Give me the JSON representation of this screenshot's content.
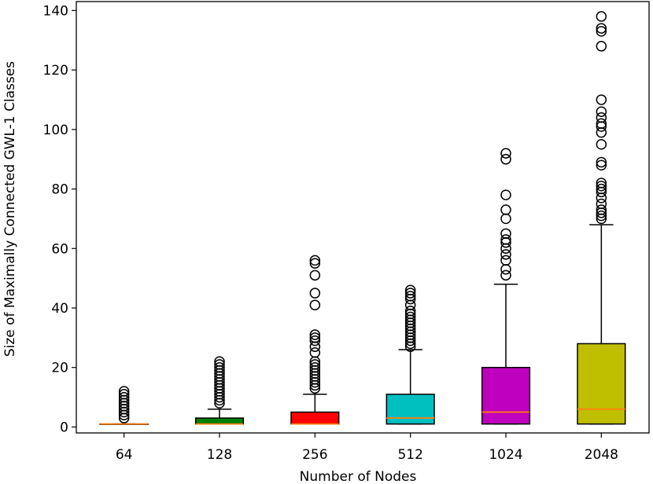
{
  "chart_data": {
    "type": "boxplot",
    "title": "",
    "xlabel": "Number of Nodes",
    "ylabel": "Size of Maximally Connected GWL-1 Classes",
    "ylim": [
      -2,
      143
    ],
    "yticks": [
      0,
      20,
      40,
      60,
      80,
      100,
      120,
      140
    ],
    "grid": false,
    "categories": [
      "64",
      "128",
      "256",
      "512",
      "1024",
      "2048"
    ],
    "boxes": [
      {
        "category": "64",
        "color": "#1f77b4",
        "whisker_low": 1,
        "q1": 1,
        "median": 1,
        "q3": 1,
        "whisker_high": 1,
        "outliers": [
          3,
          4,
          5,
          6,
          7,
          8,
          9,
          10,
          11,
          12
        ]
      },
      {
        "category": "128",
        "color": "#008000",
        "whisker_low": 1,
        "q1": 1,
        "median": 1,
        "q3": 3,
        "whisker_high": 6,
        "outliers": [
          8,
          9,
          10,
          11,
          12,
          13,
          14,
          15,
          16,
          17,
          18,
          19,
          20,
          21,
          22
        ]
      },
      {
        "category": "256",
        "color": "#ff0000",
        "whisker_low": 1,
        "q1": 1,
        "median": 1,
        "q3": 5,
        "whisker_high": 11,
        "outliers": [
          13,
          14,
          15,
          16,
          17,
          18,
          19,
          20,
          21,
          22,
          25,
          27,
          29,
          30,
          31,
          41,
          45,
          51,
          55,
          56
        ]
      },
      {
        "category": "512",
        "color": "#00bfbf",
        "whisker_low": 1,
        "q1": 1,
        "median": 3,
        "q3": 11,
        "whisker_high": 26,
        "outliers": [
          27,
          28,
          29,
          30,
          31,
          32,
          33,
          34,
          35,
          36,
          37,
          38,
          39,
          41,
          43,
          44,
          45,
          46
        ]
      },
      {
        "category": "1024",
        "color": "#bf00bf",
        "whisker_low": 1,
        "q1": 1,
        "median": 5,
        "q3": 20,
        "whisker_high": 48,
        "outliers": [
          51,
          53,
          56,
          58,
          60,
          62,
          63,
          65,
          70,
          73,
          78,
          90,
          92
        ]
      },
      {
        "category": "2048",
        "color": "#bfbf00",
        "whisker_low": 1,
        "q1": 1,
        "median": 6,
        "q3": 28,
        "whisker_high": 68,
        "outliers": [
          70,
          71,
          72,
          73,
          75,
          77,
          79,
          80,
          81,
          82,
          88,
          89,
          95,
          99,
          101,
          102,
          104,
          106,
          110,
          128,
          133,
          134,
          138
        ]
      }
    ],
    "median_color": "#ff7f0e"
  }
}
